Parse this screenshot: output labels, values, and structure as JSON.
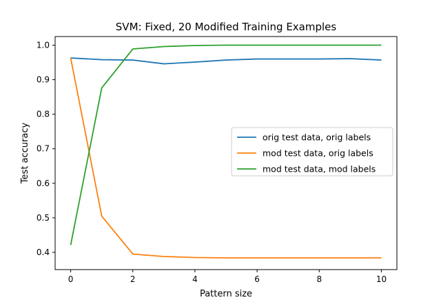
{
  "chart_data": {
    "type": "line",
    "title": "SVM: Fixed, 20 Modified Training Examples",
    "xlabel": "Pattern size",
    "ylabel": "Test accuracy",
    "xlim": [
      -0.5,
      10.5
    ],
    "ylim": [
      0.35,
      1.025
    ],
    "x": [
      0,
      1,
      2,
      3,
      4,
      5,
      6,
      7,
      8,
      9,
      10
    ],
    "xticks": [
      0,
      2,
      4,
      6,
      8,
      10
    ],
    "yticks": [
      0.4,
      0.5,
      0.6,
      0.7,
      0.8,
      0.9,
      1.0
    ],
    "ytick_labels": [
      "0.4",
      "0.5",
      "0.6",
      "0.7",
      "0.8",
      "0.9",
      "1.0"
    ],
    "grid": false,
    "legend_position": "center-right",
    "series": [
      {
        "name": "orig test data, orig labels",
        "color": "#1f77b4",
        "values": [
          0.963,
          0.958,
          0.957,
          0.946,
          0.951,
          0.957,
          0.96,
          0.96,
          0.96,
          0.961,
          0.957
        ]
      },
      {
        "name": "mod test data, orig labels",
        "color": "#ff7f0e",
        "values": [
          0.963,
          0.505,
          0.395,
          0.388,
          0.385,
          0.384,
          0.384,
          0.384,
          0.384,
          0.384,
          0.384
        ]
      },
      {
        "name": "mod test data, mod labels",
        "color": "#2ca02c",
        "values": [
          0.421,
          0.876,
          0.989,
          0.996,
          0.999,
          1.0,
          1.0,
          1.0,
          1.0,
          1.0,
          1.0
        ]
      }
    ]
  }
}
